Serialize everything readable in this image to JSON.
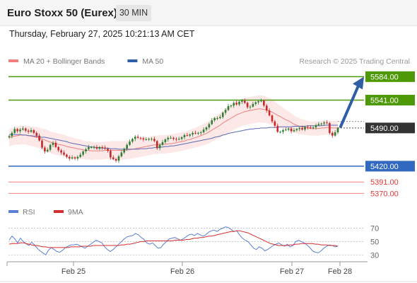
{
  "header": {
    "instrument": "Euro Stoxx 50 (Eurex)",
    "timeframe": "30 MIN"
  },
  "datetime": "Thursday, February 27, 2025 10:21:13 AM CET",
  "watermark": "Research © 2025 Trading Central",
  "colors": {
    "resistance": "#4e9a06",
    "support": "#3168c0",
    "minor_support": "#f08080",
    "price_marker": "#333333",
    "arrow": "#2f5ea6",
    "candle_up": "#2e7d32",
    "candle_down": "#c62828",
    "ma20": "#f08080",
    "bollinger": "#fde4e4",
    "ma50": "#5a6bb5",
    "rsi": "#5b7fd6",
    "rsi_ma": "#d32f2f"
  },
  "chart_data": [
    {
      "type": "candlestick",
      "legend": [
        {
          "name": "MA 20 + Bollinger Bands",
          "color": "#f08080"
        },
        {
          "name": "MA 50",
          "color": "#2f5ea6"
        }
      ],
      "x_ticks": [
        "Feb 25",
        "Feb 26",
        "Feb 27",
        "Feb 28"
      ],
      "ylim": [
        5355,
        5600
      ],
      "current_price": {
        "label": "5490.00",
        "value": 5490
      },
      "levels": [
        {
          "label": "5584.00",
          "value": 5584,
          "kind": "resistance"
        },
        {
          "label": "5541.00",
          "value": 5541,
          "kind": "resistance"
        },
        {
          "label": "5420.00",
          "value": 5420,
          "kind": "support"
        },
        {
          "label": "5391.00",
          "value": 5391,
          "kind": "minor_support"
        },
        {
          "label": "5370.00",
          "value": 5370,
          "kind": "minor_support"
        }
      ],
      "close": [
        5475,
        5481,
        5488,
        5484,
        5487,
        5489,
        5485,
        5483,
        5486,
        5481,
        5476,
        5467,
        5454,
        5447,
        5450,
        5459,
        5463,
        5455,
        5449,
        5445,
        5441,
        5437,
        5434,
        5436,
        5434,
        5437,
        5441,
        5447,
        5451,
        5455,
        5455,
        5455,
        5452,
        5455,
        5454,
        5452,
        5448,
        5436,
        5433,
        5430,
        5438,
        5445,
        5452,
        5459,
        5465,
        5470,
        5474,
        5472,
        5471,
        5469,
        5469,
        5470,
        5470,
        5466,
        5453,
        5459,
        5464,
        5469,
        5472,
        5472,
        5470,
        5469,
        5470,
        5473,
        5477,
        5476,
        5478,
        5481,
        5480,
        5481,
        5482,
        5487,
        5491,
        5497,
        5504,
        5508,
        5508,
        5510,
        5518,
        5523,
        5530,
        5531,
        5536,
        5533,
        5538,
        5540,
        5536,
        5528,
        5529,
        5534,
        5537,
        5539,
        5540,
        5531,
        5522,
        5513,
        5502,
        5494,
        5483,
        5483,
        5486,
        5487,
        5489,
        5484,
        5486,
        5488,
        5490,
        5487,
        5492,
        5491,
        5490,
        5491,
        5495,
        5497,
        5498,
        5500,
        5499,
        5481,
        5476,
        5482,
        5490
      ],
      "ma20": [
        5472,
        5474,
        5475,
        5476,
        5477,
        5477,
        5477,
        5476,
        5475,
        5474,
        5473,
        5472,
        5470,
        5468,
        5466,
        5464,
        5462,
        5461,
        5460,
        5459,
        5458,
        5456,
        5455,
        5454,
        5453,
        5452,
        5451,
        5450,
        5449,
        5449,
        5448,
        5448,
        5448,
        5448,
        5448,
        5449,
        5449,
        5449,
        5449,
        5449,
        5449,
        5449,
        5449,
        5450,
        5450,
        5451,
        5452,
        5453,
        5454,
        5455,
        5456,
        5457,
        5458,
        5459,
        5459,
        5460,
        5460,
        5460,
        5461,
        5461,
        5462,
        5463,
        5464,
        5465,
        5466,
        5468,
        5469,
        5471,
        5472,
        5474,
        5476,
        5478,
        5480,
        5483,
        5486,
        5489,
        5492,
        5495,
        5499,
        5502,
        5505,
        5508,
        5511,
        5514,
        5516,
        5518,
        5520,
        5521,
        5522,
        5523,
        5524,
        5525,
        5525,
        5524,
        5523,
        5521,
        5519,
        5516,
        5513,
        5511,
        5508,
        5505,
        5503,
        5500,
        5497,
        5495,
        5493,
        5492,
        5491,
        5490,
        5489,
        5489,
        5489,
        5489,
        5490,
        5490,
        5491,
        5491,
        5490,
        5490,
        5490
      ],
      "ma50": [
        5478,
        5478,
        5478,
        5478,
        5478,
        5477,
        5477,
        5476,
        5476,
        5475,
        5475,
        5474,
        5473,
        5473,
        5472,
        5471,
        5470,
        5469,
        5468,
        5467,
        5466,
        5465,
        5463,
        5462,
        5461,
        5460,
        5459,
        5458,
        5457,
        5456,
        5455,
        5455,
        5454,
        5454,
        5453,
        5453,
        5453,
        5452,
        5452,
        5452,
        5451,
        5451,
        5451,
        5451,
        5451,
        5451,
        5451,
        5451,
        5452,
        5452,
        5452,
        5453,
        5453,
        5454,
        5454,
        5455,
        5455,
        5456,
        5456,
        5457,
        5457,
        5458,
        5459,
        5460,
        5461,
        5462,
        5463,
        5464,
        5465,
        5466,
        5467,
        5468,
        5469,
        5470,
        5471,
        5473,
        5474,
        5475,
        5477,
        5478,
        5480,
        5481,
        5482,
        5483,
        5484,
        5485,
        5486,
        5487,
        5488,
        5488,
        5489,
        5489,
        5490,
        5490,
        5490,
        5491,
        5491,
        5491,
        5491,
        5492,
        5492,
        5492,
        5492,
        5492,
        5493,
        5493,
        5493,
        5493,
        5493,
        5494,
        5494,
        5494,
        5494,
        5494,
        5494,
        5495,
        5495,
        5495,
        5495,
        5495,
        5495
      ],
      "bollinger_width": [
        16,
        16,
        16,
        17,
        17,
        17,
        17,
        18,
        18,
        18,
        19,
        19,
        19,
        20,
        20,
        20,
        20,
        20,
        20,
        20,
        20,
        19,
        19,
        19,
        18,
        18,
        18,
        17,
        17,
        17,
        17,
        16,
        16,
        16,
        16,
        16,
        16,
        17,
        17,
        17,
        17,
        17,
        17,
        17,
        17,
        17,
        17,
        17,
        17,
        17,
        17,
        17,
        17,
        17,
        17,
        17,
        17,
        17,
        17,
        17,
        17,
        17,
        17,
        17,
        17,
        17,
        18,
        18,
        18,
        19,
        19,
        20,
        20,
        21,
        21,
        22,
        22,
        23,
        23,
        24,
        24,
        24,
        25,
        25,
        25,
        25,
        25,
        25,
        25,
        25,
        25,
        25,
        25,
        25,
        24,
        24,
        23,
        22,
        21,
        20,
        19,
        18,
        17,
        17,
        16,
        15,
        15,
        14,
        14,
        13,
        13,
        13,
        13,
        13,
        13,
        13,
        13,
        13,
        13,
        13,
        13
      ]
    },
    {
      "type": "line",
      "legend": [
        {
          "name": "RSI",
          "color": "#5b7fd6"
        },
        {
          "name": "9MA",
          "color": "#d32f2f"
        }
      ],
      "y_ticks": [
        70,
        50,
        30
      ],
      "ylim": [
        25,
        80
      ],
      "series": [
        {
          "name": "RSI",
          "values": [
            52,
            58,
            54,
            48,
            55,
            50,
            47,
            44,
            49,
            45,
            40,
            36,
            33,
            30,
            37,
            41,
            38,
            35,
            34,
            37,
            41,
            43,
            45,
            45,
            46,
            44,
            42,
            40,
            43,
            46,
            49,
            52,
            50,
            48,
            42,
            38,
            35,
            38,
            42,
            46,
            50,
            54,
            57,
            58,
            59,
            62,
            60,
            56,
            53,
            48,
            46,
            48,
            44,
            40,
            41,
            46,
            50,
            54,
            55,
            56,
            54,
            52,
            54,
            57,
            60,
            61,
            59,
            62,
            60,
            58,
            60,
            64,
            66,
            67,
            65,
            68,
            70,
            72,
            71,
            68,
            65,
            66,
            60,
            55,
            52,
            50,
            45,
            40,
            38,
            42,
            40,
            36,
            38,
            41,
            44,
            46,
            48,
            45,
            43,
            46,
            42,
            44,
            50,
            52,
            50,
            48,
            45,
            41,
            36,
            34,
            33,
            36,
            40,
            43,
            45,
            44,
            42,
            43
          ]
        },
        {
          "name": "9MA",
          "values": [
            46,
            47,
            47,
            47,
            48,
            48,
            47,
            46,
            45,
            44,
            44,
            43,
            42,
            42,
            41,
            41,
            41,
            41,
            41,
            41,
            41,
            41,
            42,
            42,
            42,
            42,
            43,
            43,
            43,
            43,
            44,
            44,
            44,
            44,
            44,
            44,
            44,
            44,
            44,
            44,
            45,
            45,
            46,
            46,
            47,
            48,
            49,
            50,
            50,
            51,
            51,
            51,
            51,
            51,
            51,
            51,
            51,
            51,
            51,
            52,
            52,
            52,
            52,
            53,
            53,
            54,
            55,
            55,
            56,
            56,
            57,
            58,
            58,
            59,
            60,
            61,
            62,
            63,
            64,
            65,
            65,
            66,
            66,
            65,
            64,
            63,
            61,
            59,
            57,
            55,
            53,
            51,
            49,
            47,
            46,
            45,
            44,
            44,
            44,
            44,
            45,
            45,
            46,
            46,
            47,
            47,
            47,
            47,
            47,
            46,
            46,
            45,
            45,
            45,
            44,
            44,
            44,
            43
          ]
        }
      ]
    }
  ]
}
